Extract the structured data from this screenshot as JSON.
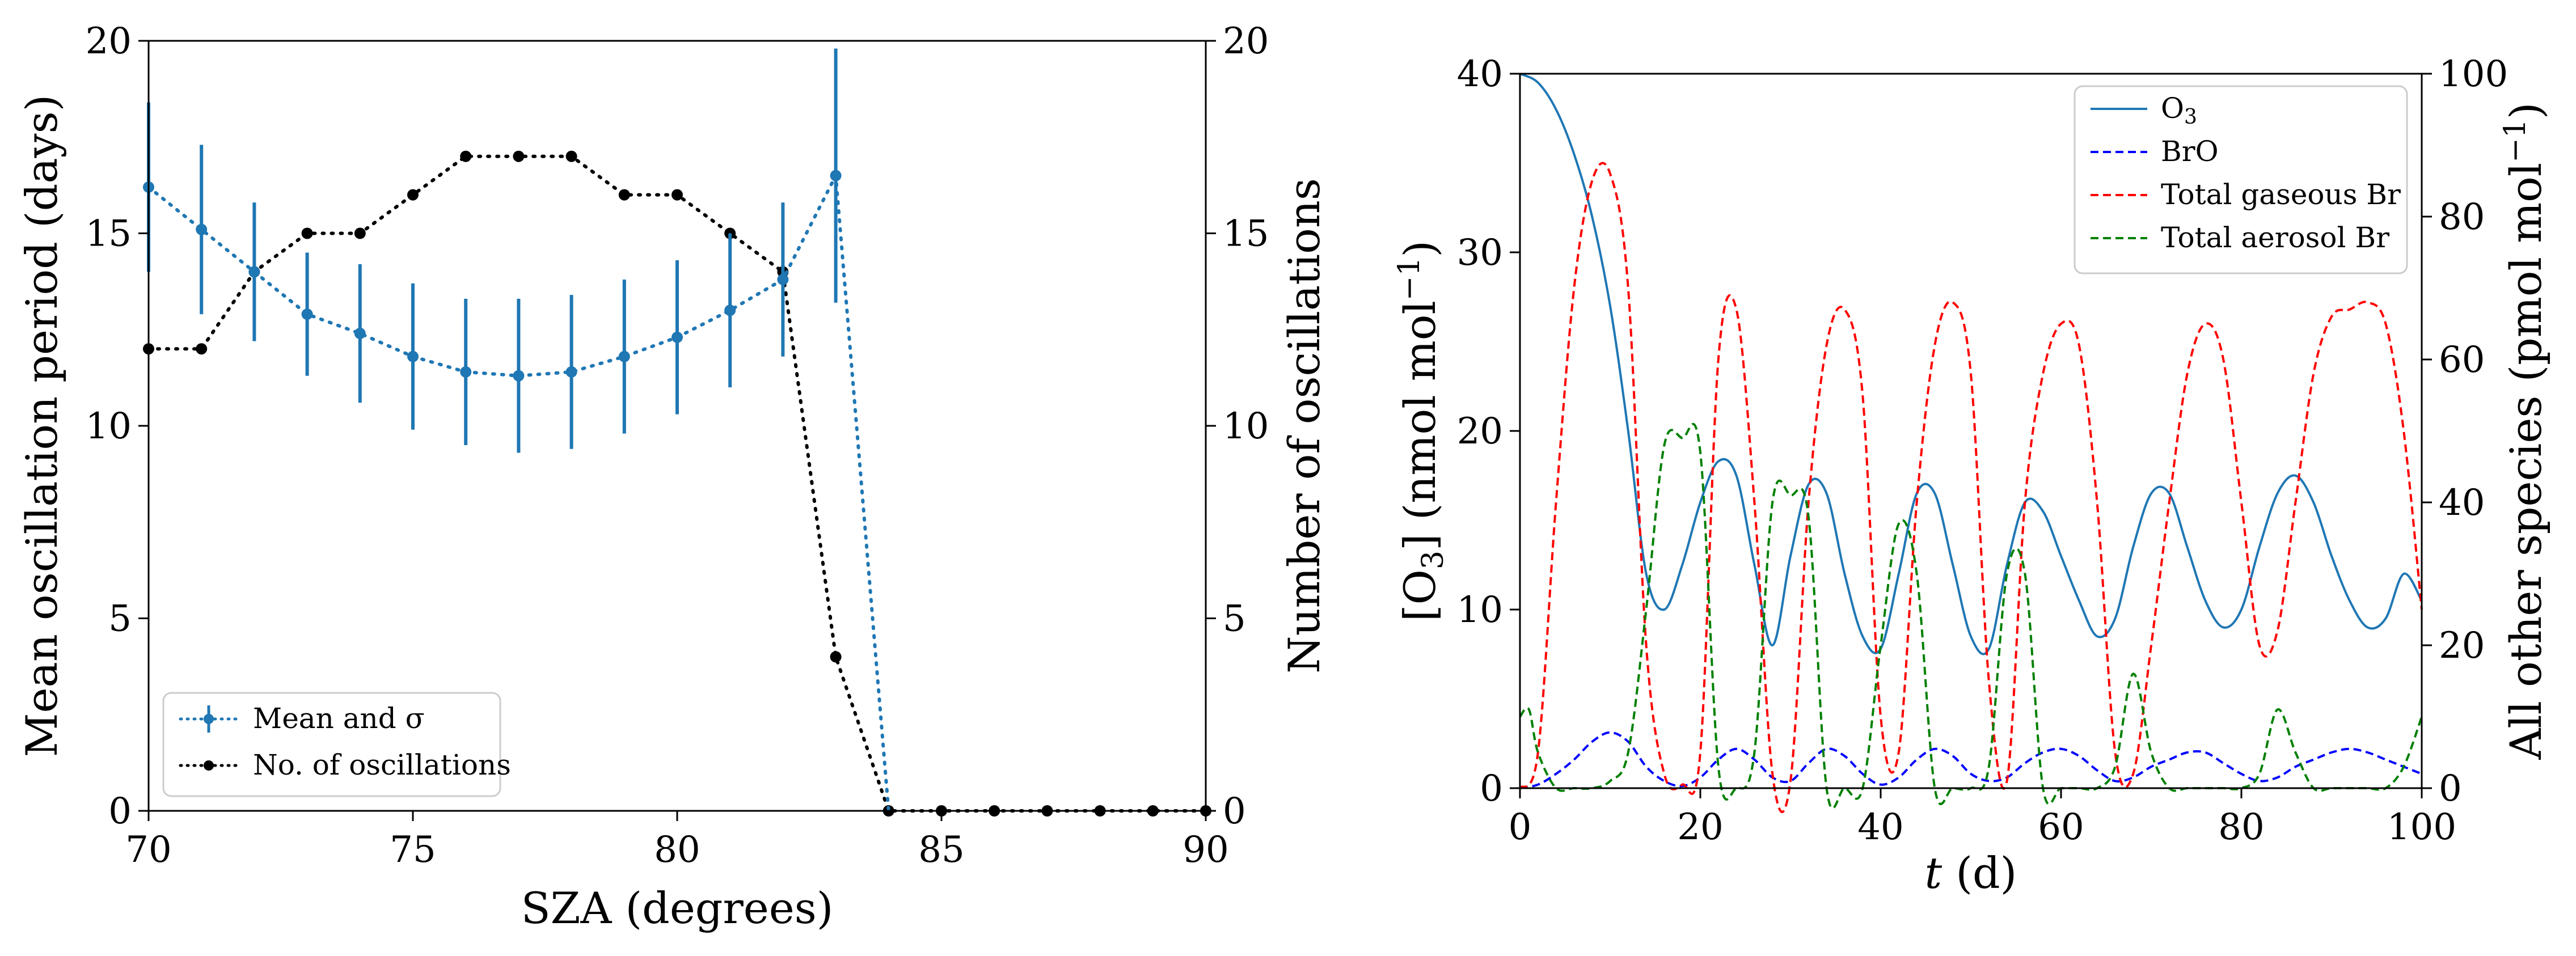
{
  "chart_data": [
    {
      "type": "line",
      "xlabel": "SZA (degrees)",
      "ylabel": "Mean oscillation period (days)",
      "y2label": "Number of oscillations",
      "xlim": [
        70,
        90
      ],
      "ylim": [
        0,
        20
      ],
      "y2lim": [
        0,
        20
      ],
      "xticks": [
        "70",
        "75",
        "80",
        "85",
        "90"
      ],
      "yticks": [
        "0",
        "5",
        "10",
        "15",
        "20"
      ],
      "y2ticks": [
        "0",
        "5",
        "10",
        "15",
        "20"
      ],
      "legend_position": "lower-left",
      "grid": false,
      "series": [
        {
          "name": "Mean and σ",
          "axis": "left",
          "color": "#1f77b4",
          "style": "dotted-with-errorbars",
          "x": [
            70,
            71,
            72,
            73,
            74,
            75,
            76,
            77,
            78,
            79,
            80,
            81,
            82,
            83
          ],
          "y": [
            16.2,
            15.1,
            14.0,
            12.9,
            12.4,
            11.8,
            11.4,
            11.3,
            11.4,
            11.8,
            12.3,
            13.0,
            13.8,
            16.5
          ],
          "err": [
            2.2,
            2.2,
            1.8,
            1.6,
            1.8,
            1.9,
            1.9,
            2.0,
            2.0,
            2.0,
            2.0,
            2.0,
            2.0,
            3.3
          ]
        },
        {
          "name": "No. of oscillations",
          "axis": "right",
          "color": "#000000",
          "style": "dotted-markers",
          "x": [
            70,
            71,
            72,
            73,
            74,
            75,
            76,
            77,
            78,
            79,
            80,
            81,
            82,
            83,
            84,
            85,
            86,
            87,
            88,
            89,
            90
          ],
          "y": [
            12,
            12,
            14,
            15,
            15,
            16,
            17,
            17,
            17,
            16,
            16,
            15,
            14,
            4,
            0,
            0,
            0,
            0,
            0,
            0,
            0
          ]
        }
      ],
      "line_tail": {
        "x": [
          83,
          84
        ],
        "y": [
          16.5,
          0
        ]
      }
    },
    {
      "type": "line",
      "xlabel_italic": "t",
      "xlabel_rest": " (d)",
      "ylabel_pre": "[O",
      "ylabel_sub": "3",
      "ylabel_mid": "] (nmol mol",
      "ylabel_sup": "−1",
      "ylabel_post": ")",
      "y2label_pre": "All other species (pmol mol",
      "y2label_sup": "−1",
      "y2label_post": ")",
      "xlim": [
        0,
        100
      ],
      "ylim": [
        0,
        40
      ],
      "y2lim": [
        0,
        100
      ],
      "xticks": [
        "0",
        "20",
        "40",
        "60",
        "80",
        "100"
      ],
      "yticks": [
        "0",
        "10",
        "20",
        "30",
        "40"
      ],
      "y2ticks": [
        "0",
        "20",
        "40",
        "60",
        "80",
        "100"
      ],
      "legend_position": "top-right",
      "grid": false,
      "series": [
        {
          "name_main": "O",
          "name_sub": "3",
          "axis": "left",
          "color": "#1f77b4",
          "style": "solid",
          "x": [
            0,
            2,
            4,
            6,
            8,
            10,
            12,
            14,
            16,
            18,
            20,
            22,
            24,
            26,
            28,
            30,
            32,
            34,
            36,
            38,
            40,
            42,
            44,
            46,
            48,
            50,
            52,
            54,
            56,
            58,
            60,
            62,
            64,
            66,
            68,
            70,
            72,
            74,
            76,
            78,
            80,
            82,
            84,
            86,
            88,
            90,
            92,
            94,
            96,
            98,
            100
          ],
          "y": [
            40,
            39.5,
            38,
            35.5,
            32,
            27,
            20,
            12,
            10,
            12.5,
            16,
            18.3,
            17.5,
            12.5,
            8,
            13,
            17,
            16.5,
            12,
            8.5,
            7.8,
            12,
            16.5,
            16.5,
            12.5,
            8.5,
            7.8,
            12.5,
            16,
            15.5,
            13,
            10.5,
            8.5,
            9.5,
            13.5,
            16.5,
            16.5,
            13.5,
            10.5,
            9,
            10,
            13.5,
            16.5,
            17.5,
            16,
            13,
            10.5,
            9,
            9.5,
            12,
            10.5
          ]
        },
        {
          "name": "BrO",
          "axis": "right",
          "color": "#0000ff",
          "style": "dashed",
          "x": [
            0,
            2,
            4,
            6,
            8,
            10,
            12,
            14,
            16,
            18,
            20,
            22,
            24,
            26,
            28,
            30,
            32,
            34,
            36,
            38,
            40,
            42,
            44,
            46,
            48,
            50,
            52,
            54,
            56,
            58,
            60,
            62,
            64,
            66,
            68,
            70,
            72,
            74,
            76,
            78,
            80,
            82,
            84,
            86,
            88,
            90,
            92,
            94,
            96,
            98,
            100
          ],
          "y": [
            0,
            0.5,
            2,
            4,
            6.5,
            7.8,
            6.5,
            3,
            1,
            0.3,
            1.5,
            4,
            5.5,
            4,
            1.5,
            1,
            3.5,
            5.5,
            4.5,
            2,
            0.5,
            1.5,
            4,
            5.5,
            4.5,
            2,
            1,
            1.5,
            3.5,
            5,
            5.5,
            4.5,
            2.5,
            1,
            1.5,
            3,
            4,
            5,
            5,
            3.5,
            2,
            1,
            1.5,
            3,
            4,
            5,
            5.5,
            5,
            4,
            3,
            2
          ]
        },
        {
          "name": "Total gaseous Br",
          "axis": "right",
          "color": "#ff0000",
          "style": "dashed",
          "x": [
            0,
            2,
            4,
            6,
            8,
            10,
            12,
            14,
            16,
            18,
            20,
            22,
            24,
            26,
            28,
            30,
            32,
            34,
            36,
            38,
            40,
            42,
            44,
            46,
            48,
            50,
            52,
            54,
            56,
            58,
            60,
            62,
            64,
            66,
            68,
            70,
            72,
            74,
            76,
            78,
            80,
            82,
            84,
            86,
            88,
            90,
            92,
            94,
            96,
            98,
            100
          ],
          "y": [
            0,
            5,
            40,
            70,
            85,
            86,
            70,
            20,
            2,
            0.5,
            5,
            60,
            67,
            40,
            2,
            1,
            40,
            62,
            67,
            55,
            10,
            5,
            40,
            62,
            68,
            58,
            15,
            1,
            40,
            58,
            65,
            62,
            40,
            5,
            2,
            20,
            40,
            58,
            65,
            60,
            40,
            20,
            22,
            40,
            58,
            66,
            67,
            68,
            65,
            50,
            25
          ]
        },
        {
          "name": "Total aerosol Br",
          "axis": "right",
          "color": "#008000",
          "style": "dashed",
          "x": [
            0,
            1,
            2,
            4,
            6,
            8,
            10,
            12,
            14,
            16,
            18,
            20,
            22,
            24,
            26,
            28,
            30,
            32,
            34,
            36,
            38,
            40,
            42,
            44,
            46,
            48,
            50,
            52,
            54,
            56,
            58,
            60,
            62,
            64,
            66,
            68,
            70,
            72,
            74,
            76,
            78,
            80,
            82,
            84,
            86,
            88,
            90,
            92,
            94,
            96,
            98,
            100
          ],
          "y": [
            10,
            11,
            5,
            0,
            0,
            0,
            1,
            5,
            25,
            48,
            49,
            47,
            3,
            0,
            5,
            40,
            41,
            38,
            0,
            0,
            0,
            20,
            37,
            30,
            0,
            0,
            0,
            3,
            30,
            30,
            0,
            0,
            0,
            0,
            3,
            16,
            5,
            0,
            0,
            0,
            0,
            0,
            2,
            11,
            5,
            0,
            0,
            0,
            0,
            0,
            3,
            10
          ]
        }
      ]
    }
  ]
}
